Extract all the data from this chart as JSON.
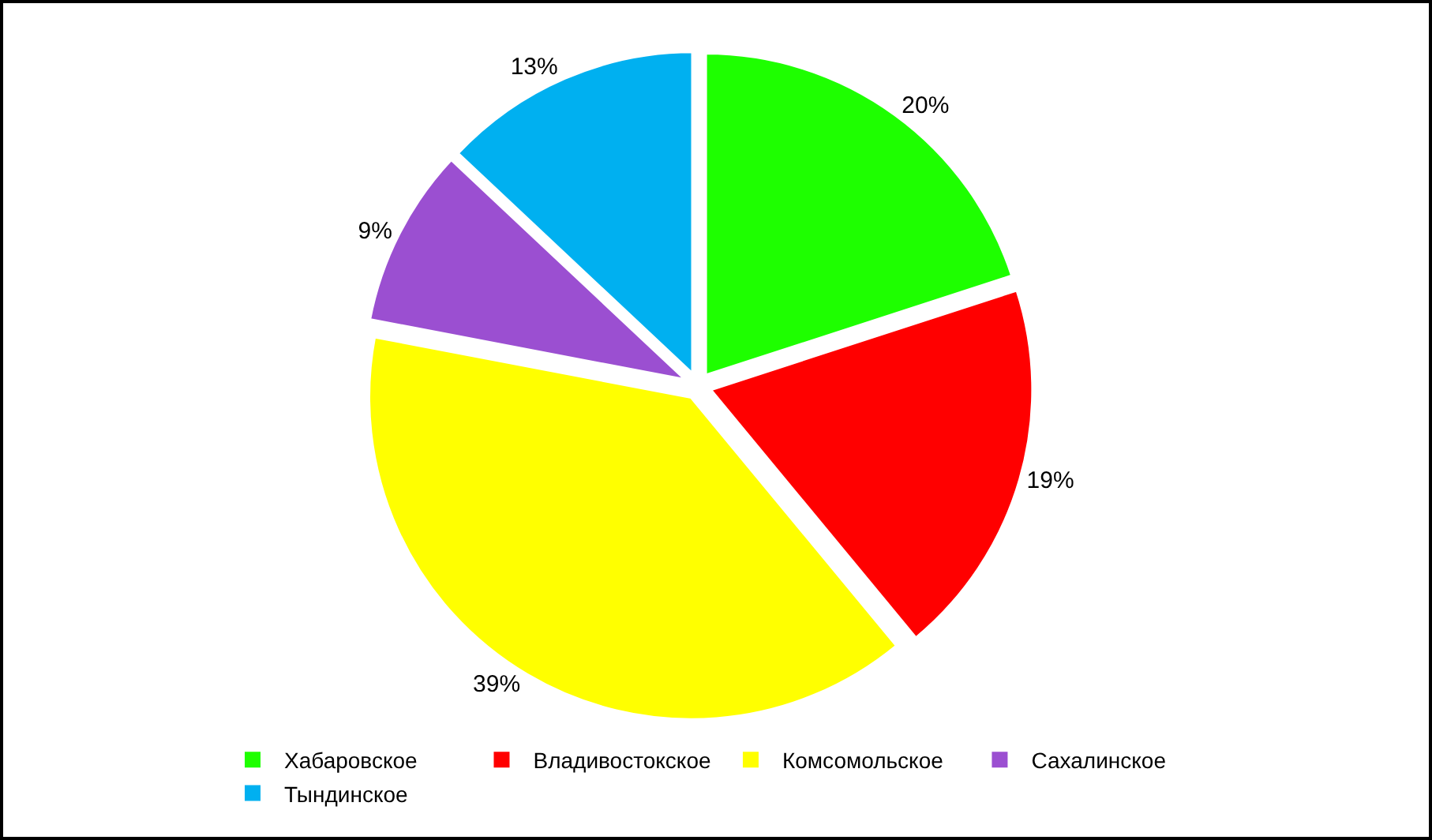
{
  "chart_data": {
    "type": "pie",
    "categories": [
      "Хабаровское",
      "Владивостокское",
      "Комсомольское",
      "Сахалинское",
      "Тындинское"
    ],
    "values": [
      20,
      19,
      39,
      9,
      13
    ],
    "value_labels": [
      "20%",
      "19%",
      "39%",
      "9%",
      "13%"
    ],
    "colors": [
      "#1eff00",
      "#ff0000",
      "#ffff00",
      "#9b4fd1",
      "#00b0f0"
    ],
    "legend": "bottom"
  }
}
